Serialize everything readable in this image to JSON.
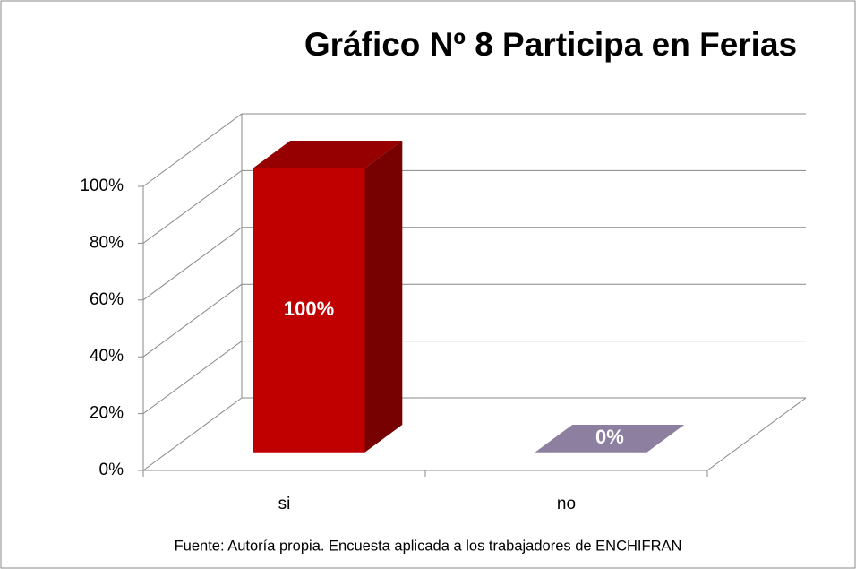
{
  "chart_data": {
    "type": "bar3d",
    "title": "Gráfico Nº 8 Participa en Ferias",
    "categories": [
      "si",
      "no"
    ],
    "values": [
      100,
      0
    ],
    "value_labels": [
      "100%",
      "0%"
    ],
    "colors": [
      "#c00000",
      "#8c7fa0"
    ],
    "ylim": [
      0,
      100
    ],
    "yticks": [
      {
        "value": 0,
        "label": "0%"
      },
      {
        "value": 20,
        "label": "20%"
      },
      {
        "value": 40,
        "label": "40%"
      },
      {
        "value": 60,
        "label": "60%"
      },
      {
        "value": 80,
        "label": "80%"
      },
      {
        "value": 100,
        "label": "100%"
      }
    ],
    "grid": true,
    "source": "Fuente: Autoría propia. Encuesta aplicada a los trabajadores de ENCHIFRAN"
  }
}
